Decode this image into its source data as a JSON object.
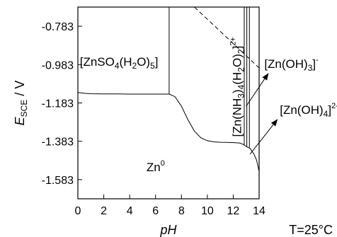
{
  "chart_data": {
    "type": "line",
    "title": "",
    "xlabel": "pH",
    "ylabel_main": "E",
    "ylabel_sub": "SCE",
    "ylabel_unit": " / V",
    "xlim": [
      0,
      14
    ],
    "ylim": [
      -1.683,
      -0.683
    ],
    "x_ticks": [
      0,
      2,
      4,
      6,
      8,
      10,
      12,
      14
    ],
    "y_ticks": [
      -0.783,
      -0.983,
      -1.183,
      -1.383,
      -1.583
    ],
    "y_tick_labels": [
      "-0.783",
      "-0.983",
      "-1.183",
      "-1.383",
      "-1.583"
    ],
    "grid": false,
    "series": [
      {
        "style": "solid",
        "x": [
          0,
          0.5,
          1,
          2,
          3,
          4,
          5,
          6,
          7.05
        ],
        "y": [
          -1.128,
          -1.133,
          -1.135,
          -1.136,
          -1.136,
          -1.137,
          -1.137,
          -1.137,
          -1.137
        ]
      },
      {
        "style": "solid",
        "x": [
          7.05,
          7.5,
          8,
          8.5,
          9,
          9.5,
          10,
          10.5,
          11,
          11.5,
          12,
          12.5,
          12.8,
          13.0
        ],
        "y": [
          -1.137,
          -1.15,
          -1.2,
          -1.27,
          -1.33,
          -1.365,
          -1.38,
          -1.386,
          -1.388,
          -1.389,
          -1.39,
          -1.392,
          -1.4,
          -1.41
        ]
      },
      {
        "style": "solid",
        "x": [
          13.0,
          13.3,
          13.6,
          13.8,
          14.0
        ],
        "y": [
          -1.41,
          -1.42,
          -1.45,
          -1.48,
          -1.54
        ]
      },
      {
        "style": "dashed",
        "x": [
          9.0,
          14.0
        ],
        "y": [
          -0.683,
          -1.0
        ]
      }
    ],
    "vertical_boundaries": [
      {
        "x": 7.05,
        "y_from": -1.137,
        "y_to": -0.683
      },
      {
        "x": 12.85,
        "y_from": -1.405,
        "y_to": -0.683
      },
      {
        "x": 13.05,
        "y_from": -1.41,
        "y_to": -0.683
      },
      {
        "x": 13.25,
        "y_from": -1.415,
        "y_to": -0.683
      }
    ],
    "regions": [
      {
        "label": "[ZnSO4(H2O)5]",
        "parts": [
          [
            "[ZnSO",
            ""
          ],
          [
            "4",
            "sub"
          ],
          [
            "(H",
            ""
          ],
          [
            "2",
            "sub"
          ],
          [
            "O)",
            ""
          ],
          [
            "5",
            "sub"
          ],
          [
            "]",
            ""
          ]
        ],
        "x": 0.15,
        "y": -0.99
      },
      {
        "label": "Zn0",
        "parts": [
          [
            "Zn",
            ""
          ],
          [
            "0",
            "sup"
          ]
        ],
        "x": 5.3,
        "y": -1.54
      },
      {
        "label": "[Zn(NH3)4(H2O)2]2+",
        "parts": [
          [
            "[Zn(NH",
            ""
          ],
          [
            "3",
            "sub"
          ],
          [
            ")",
            ""
          ],
          [
            "4",
            "sub"
          ],
          [
            "(H",
            ""
          ],
          [
            "2",
            "sub"
          ],
          [
            "O)",
            ""
          ],
          [
            "2",
            "sub"
          ],
          [
            "]",
            ""
          ],
          [
            "2+",
            "sup"
          ]
        ],
        "x": 12.6,
        "y": -1.36,
        "rotate": -90
      },
      {
        "label": "[Zn(OH)3]-",
        "parts": [
          [
            "[Zn(OH)",
            ""
          ],
          [
            "3",
            "sub"
          ],
          [
            "]",
            ""
          ],
          [
            "-",
            "sup"
          ]
        ],
        "x": 14.4,
        "y": -1.0
      },
      {
        "label": "[Zn(OH)4]2-",
        "parts": [
          [
            "[Zn(OH)",
            ""
          ],
          [
            "4",
            "sub"
          ],
          [
            "]",
            ""
          ],
          [
            "2-",
            "sup"
          ]
        ],
        "x": 15.6,
        "y": -1.24
      }
    ],
    "arrows": [
      {
        "x1": 13.0,
        "y1": -1.2,
        "x2": 14.7,
        "y2": -1.03
      },
      {
        "x1": 13.3,
        "y1": -1.45,
        "x2": 15.4,
        "y2": -1.27
      }
    ],
    "annotation": "T=25°C"
  }
}
